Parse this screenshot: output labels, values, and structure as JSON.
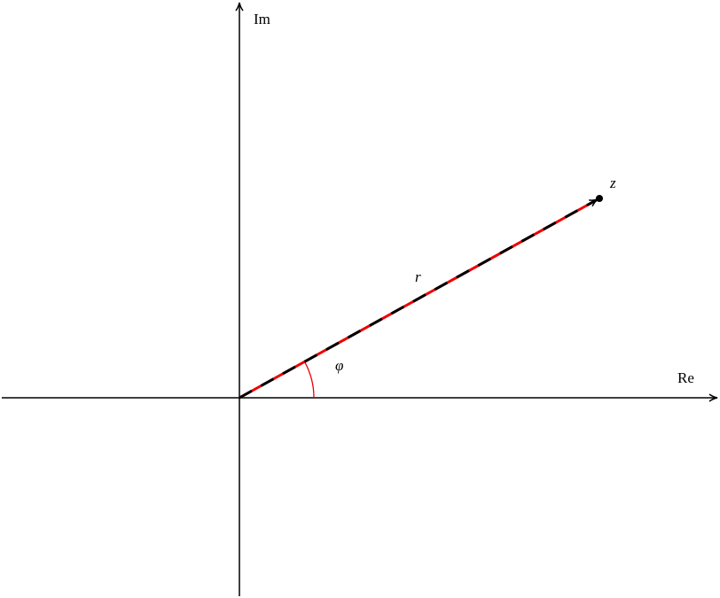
{
  "labels": {
    "imaginary_axis": "Im",
    "real_axis": "Re",
    "point": "z",
    "modulus": "r",
    "argument": "φ"
  }
}
